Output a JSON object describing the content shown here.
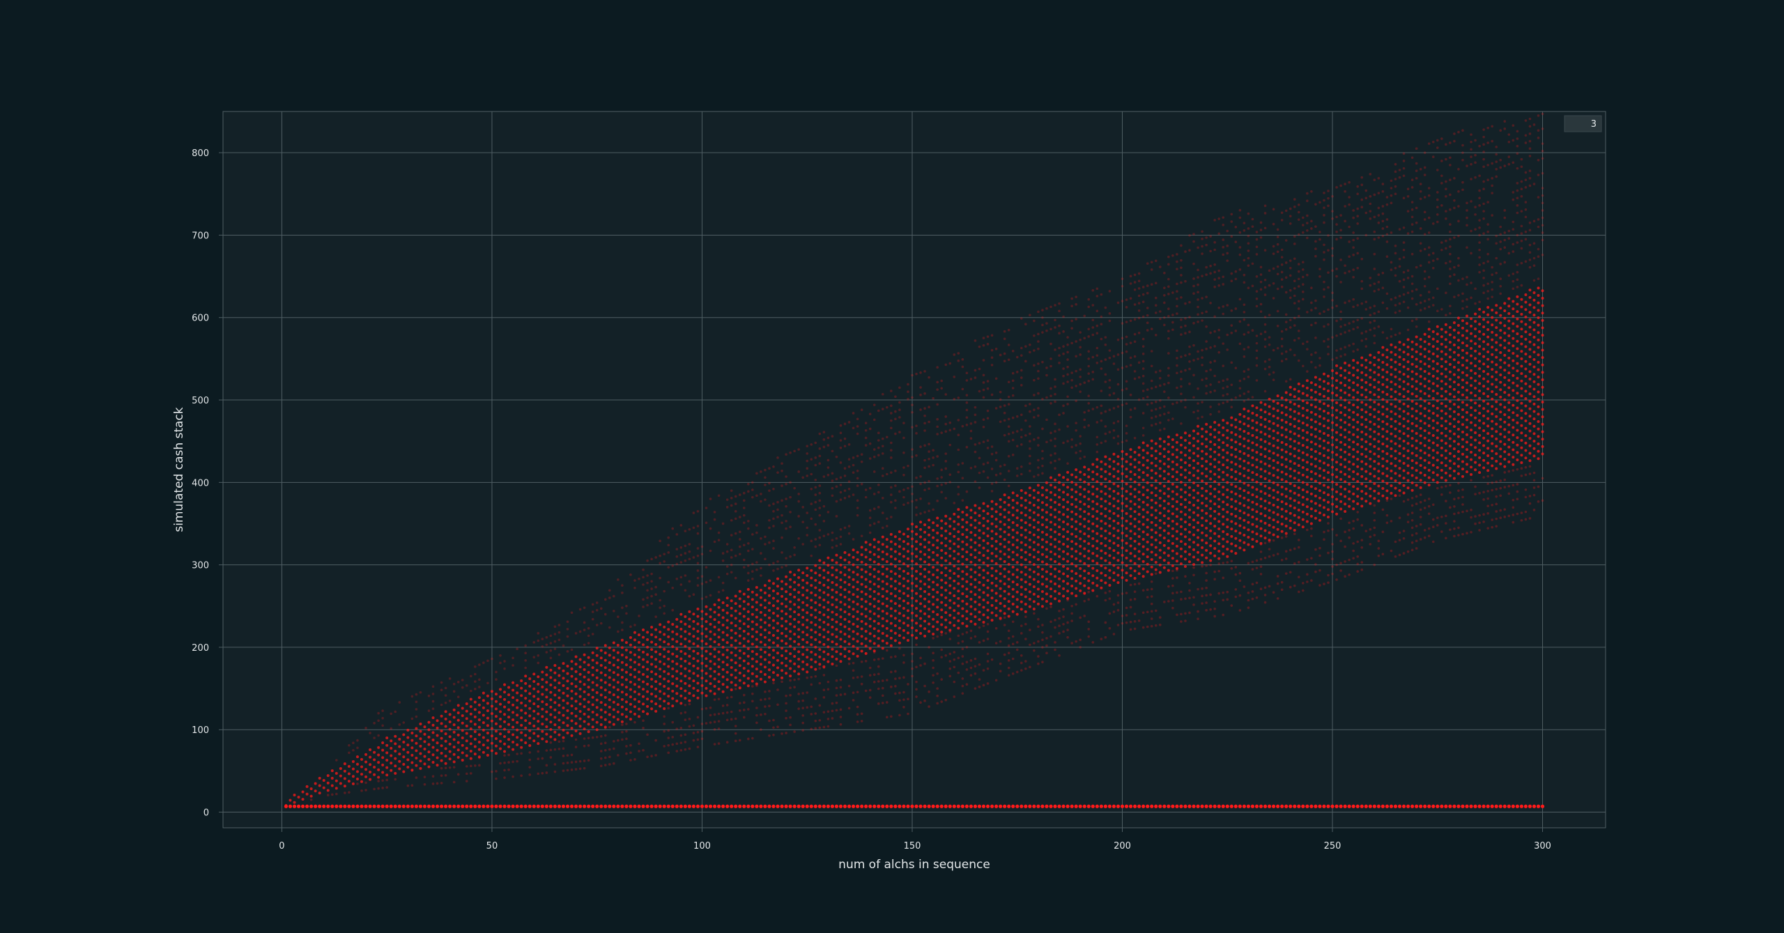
{
  "theme": {
    "figure_bg": "#0c1b21",
    "axes_bg": "#132127",
    "grid": "#4f5e63",
    "spine": "#4f5e63",
    "text": "#e4e8ea",
    "marker": "#ff1a1a",
    "legend_bg": "#2a373c"
  },
  "chart_data": {
    "type": "scatter",
    "title": "",
    "xlabel": "num of alchs in sequence",
    "ylabel": "simulated cash stack",
    "xlim": [
      -14,
      315
    ],
    "ylim": [
      -19,
      850
    ],
    "xticks": [
      0,
      50,
      100,
      150,
      200,
      250,
      300
    ],
    "yticks": [
      0,
      100,
      200,
      300,
      400,
      500,
      600,
      700,
      800
    ],
    "grid": true,
    "legend": {
      "position": "top-right",
      "entries": [
        "3"
      ]
    },
    "marker": "circle",
    "marker_color": "#ff1a1a",
    "series": [
      {
        "description_x_range": [
          1,
          300
        ],
        "baseline_y": 7,
        "band": {
          "x": [
            1,
            10,
            25,
            50,
            75,
            100,
            125,
            150,
            175,
            200,
            225,
            250,
            275,
            300
          ],
          "y_low": [
            5,
            20,
            30,
            40,
            55,
            80,
            100,
            120,
            170,
            220,
            240,
            280,
            330,
            360
          ],
          "y_dense_low": [
            8,
            25,
            45,
            70,
            100,
            140,
            170,
            210,
            240,
            280,
            310,
            360,
            400,
            430
          ],
          "y_dense_high": [
            15,
            45,
            90,
            150,
            200,
            250,
            300,
            350,
            390,
            440,
            480,
            540,
            590,
            640
          ],
          "y_high": [
            15,
            55,
            130,
            190,
            260,
            380,
            450,
            530,
            600,
            650,
            730,
            760,
            820,
            850
          ]
        }
      }
    ]
  }
}
